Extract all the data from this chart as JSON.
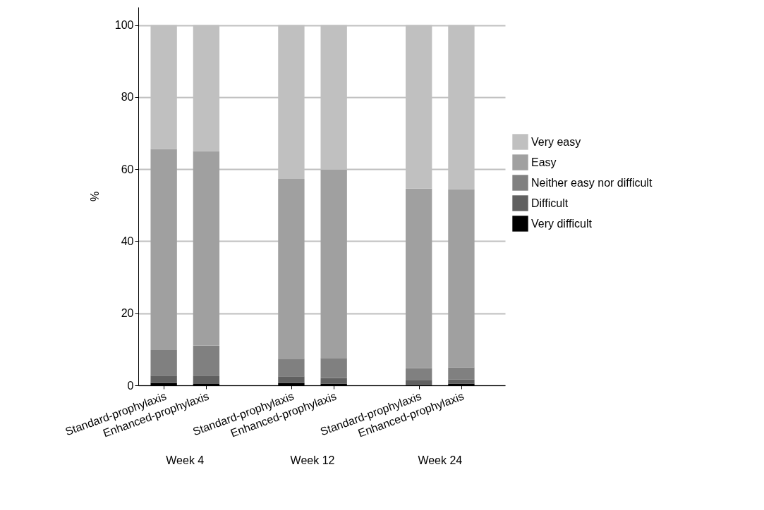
{
  "chart_data": {
    "type": "bar",
    "stacked": true,
    "ylabel": "%",
    "categories": [
      "Standard-prophylaxis",
      "Enhanced-prophylaxis",
      "Standard-prophylaxis",
      "Enhanced-prophylaxis",
      "Standard-prophylaxis",
      "Enhanced-prophylaxis"
    ],
    "series": [
      {
        "name": "Very difficult",
        "color": "#000000",
        "values": [
          0.7,
          0.4,
          0.7,
          0.5,
          0,
          0.5
        ]
      },
      {
        "name": "Difficult",
        "color": "#606060",
        "values": [
          2.0,
          2.3,
          1.8,
          1.5,
          1.5,
          1.1
        ]
      },
      {
        "name": "Neither easy nor difficult",
        "color": "#808080",
        "values": [
          7.1,
          8.3,
          4.9,
          5.6,
          3.3,
          3.4
        ]
      },
      {
        "name": "Easy",
        "color": "#a0a0a0",
        "values": [
          55.8,
          54.0,
          49.9,
          52.3,
          49.8,
          49.4
        ]
      },
      {
        "name": "Very easy",
        "color": "#c0c0c0",
        "values": [
          34.4,
          35.0,
          42.7,
          40.1,
          45.4,
          45.6
        ]
      }
    ],
    "ylim": [
      0,
      105
    ],
    "yticks": [
      0,
      20,
      40,
      60,
      80,
      100
    ],
    "grid": "y",
    "legend": "right",
    "annotations": [
      "Week 4",
      "Week 12",
      "Week 24"
    ]
  }
}
